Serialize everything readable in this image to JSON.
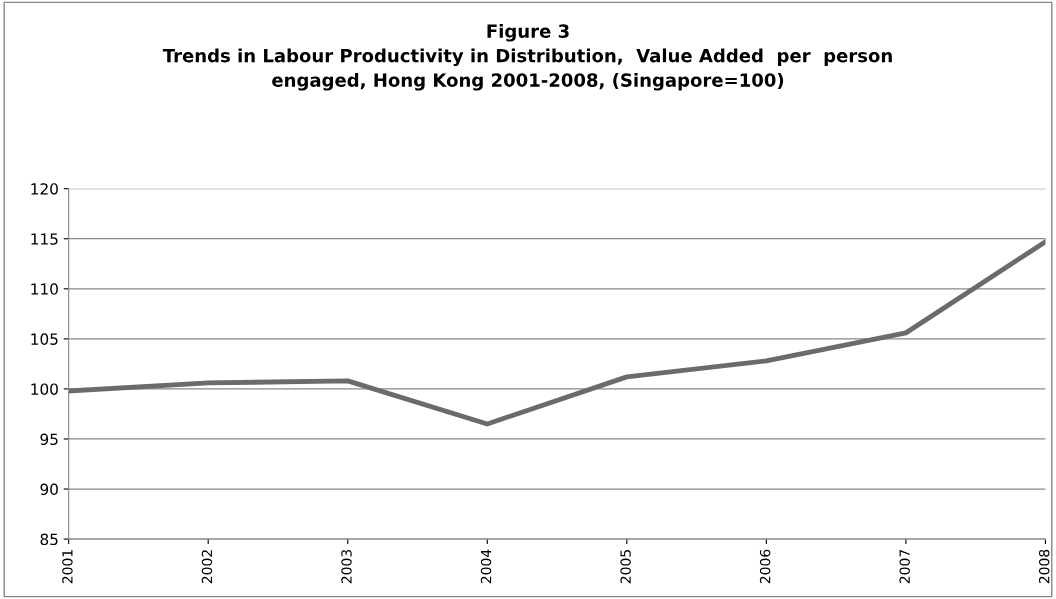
{
  "chart_data": {
    "type": "line",
    "title": "Figure 3\nTrends in Labour Productivity in Distribution,  Value Added  per  person\nengaged, Hong Kong 2001-2008, (Singapore=100)",
    "categories": [
      "2001",
      "2002",
      "2003",
      "2004",
      "2005",
      "2006",
      "2007",
      "2008"
    ],
    "series": [
      {
        "color": "#6b6b6b",
        "values": [
          99.8,
          100.6,
          100.8,
          96.5,
          101.2,
          102.8,
          105.6,
          114.7
        ]
      }
    ],
    "ylim": [
      85,
      120
    ],
    "yticks": [
      85,
      90,
      95,
      100,
      105,
      110,
      115,
      120
    ],
    "grid": "y",
    "legend": false,
    "marker": "none",
    "line_style": "solid"
  }
}
